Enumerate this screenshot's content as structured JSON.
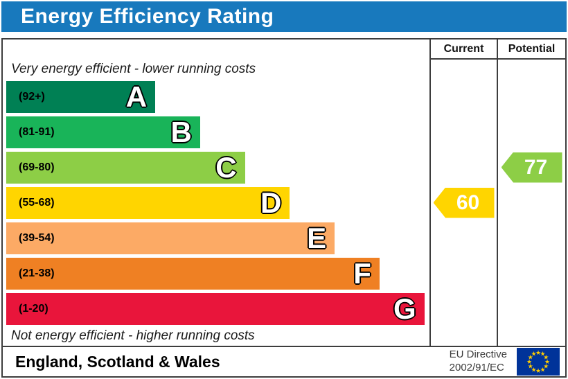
{
  "title": "Energy Efficiency Rating",
  "columns": {
    "current": "Current",
    "potential": "Potential"
  },
  "top_note": "Very energy efficient - lower running costs",
  "bottom_note": "Not energy efficient - higher running costs",
  "bands": [
    {
      "letter": "A",
      "range": "(92+)",
      "color": "#008054",
      "width_pct": 35.2
    },
    {
      "letter": "B",
      "range": "(81-91)",
      "color": "#19b459",
      "width_pct": 45.8
    },
    {
      "letter": "C",
      "range": "(69-80)",
      "color": "#8dce46",
      "width_pct": 56.4
    },
    {
      "letter": "D",
      "range": "(55-68)",
      "color": "#ffd500",
      "width_pct": 67.0
    },
    {
      "letter": "E",
      "range": "(39-54)",
      "color": "#fcaa65",
      "width_pct": 77.6
    },
    {
      "letter": "F",
      "range": "(21-38)",
      "color": "#ef8023",
      "width_pct": 88.2
    },
    {
      "letter": "G",
      "range": "(1-20)",
      "color": "#e9153b",
      "width_pct": 98.8
    }
  ],
  "current": {
    "value": "60",
    "band": "D",
    "color": "#ffd500"
  },
  "potential": {
    "value": "77",
    "band": "C",
    "color": "#8dce46"
  },
  "footer": {
    "region": "England, Scotland & Wales",
    "directive_line1": "EU Directive",
    "directive_line2": "2002/91/EC"
  },
  "colors": {
    "title_bg": "#1879bd",
    "border": "#3d3d3d",
    "eu_flag_bg": "#003399",
    "eu_star": "#ffcc00"
  },
  "chart_data": {
    "type": "bar",
    "title": "Energy Efficiency Rating",
    "categories": [
      "A (92+)",
      "B (81-91)",
      "C (69-80)",
      "D (55-68)",
      "E (39-54)",
      "F (21-38)",
      "G (1-20)"
    ],
    "band_colors": [
      "#008054",
      "#19b459",
      "#8dce46",
      "#ffd500",
      "#fcaa65",
      "#ef8023",
      "#e9153b"
    ],
    "bar_lengths_pct": [
      35.2,
      45.8,
      56.4,
      67.0,
      77.6,
      88.2,
      98.8
    ],
    "series": [
      {
        "name": "Current",
        "value": 60,
        "band": "D"
      },
      {
        "name": "Potential",
        "value": 77,
        "band": "C"
      }
    ],
    "scale_range": [
      1,
      100
    ],
    "top_annotation": "Very energy efficient - lower running costs",
    "bottom_annotation": "Not energy efficient - higher running costs",
    "footer_region": "England, Scotland & Wales",
    "footer_directive": "EU Directive 2002/91/EC"
  }
}
